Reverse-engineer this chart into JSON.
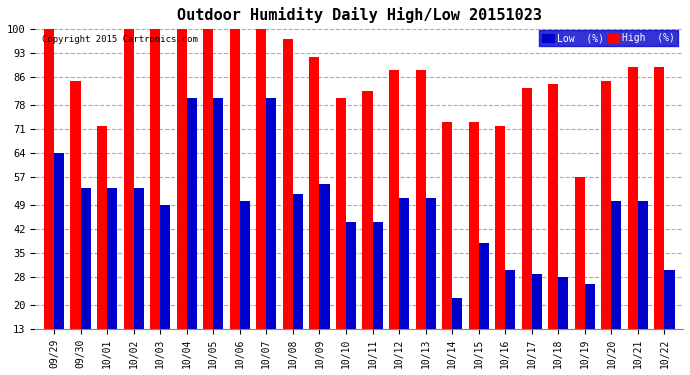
{
  "title": "Outdoor Humidity Daily High/Low 20151023",
  "copyright": "Copyright 2015 Cartronics.com",
  "dates": [
    "09/29",
    "09/30",
    "10/01",
    "10/02",
    "10/03",
    "10/04",
    "10/05",
    "10/06",
    "10/07",
    "10/08",
    "10/09",
    "10/10",
    "10/11",
    "10/12",
    "10/13",
    "10/14",
    "10/15",
    "10/16",
    "10/17",
    "10/18",
    "10/19",
    "10/20",
    "10/21",
    "10/22"
  ],
  "high": [
    100,
    85,
    72,
    100,
    100,
    100,
    100,
    100,
    100,
    97,
    92,
    80,
    82,
    88,
    88,
    73,
    73,
    72,
    83,
    84,
    57,
    85,
    89,
    89
  ],
  "low": [
    64,
    54,
    54,
    54,
    49,
    80,
    80,
    50,
    80,
    52,
    55,
    44,
    44,
    51,
    51,
    22,
    38,
    30,
    29,
    28,
    26,
    50,
    50,
    30
  ],
  "bar_width": 0.38,
  "high_color": "#ff0000",
  "low_color": "#0000cc",
  "bg_color": "#ffffff",
  "grid_color": "#aaaaaa",
  "yticks": [
    13,
    20,
    28,
    35,
    42,
    49,
    57,
    64,
    71,
    78,
    86,
    93,
    100
  ],
  "ymin": 13,
  "ymax": 100,
  "title_fontsize": 11,
  "legend_low_label": "Low  (%)",
  "legend_high_label": "High  (%)"
}
